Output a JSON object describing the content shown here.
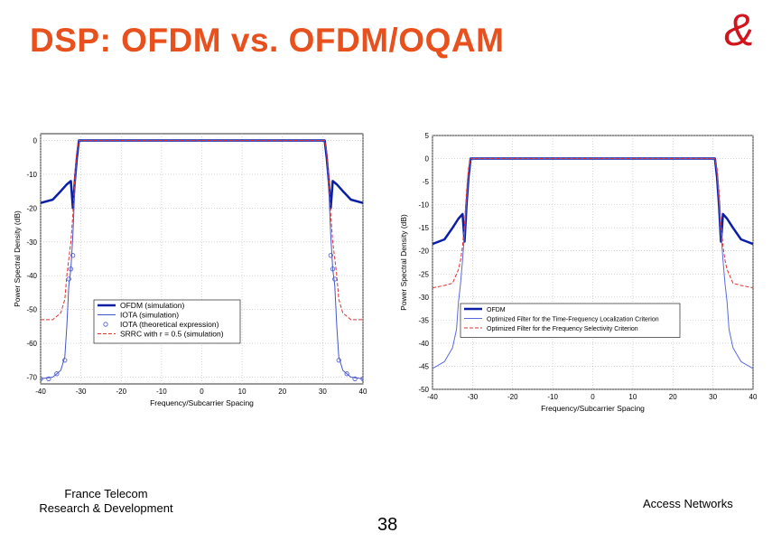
{
  "slide": {
    "title": "DSP: OFDM vs. OFDM/OQAM",
    "logo_glyph": "&",
    "footer_org_line1": "France Telecom",
    "footer_org_line2": "Research & Development",
    "footer_right": "Access Networks",
    "page_number": "38",
    "colors": {
      "title": "#e8501d",
      "logo": "#d2141e",
      "ofdm": "#0a1ea6",
      "opt_tf": "#5a6ae0",
      "srrc": "#e03030"
    }
  },
  "chart_data": [
    {
      "type": "line",
      "title": "",
      "xlabel": "Frequency/Subcarrier Spacing",
      "ylabel": "Power Spectral Density (dB)",
      "xlim": [
        -40,
        40
      ],
      "ylim": [
        -72,
        2
      ],
      "xticks": [
        -40,
        -30,
        -20,
        -10,
        0,
        10,
        20,
        30,
        40
      ],
      "yticks": [
        0,
        -10,
        -20,
        -30,
        -40,
        -50,
        -60,
        -70
      ],
      "grid": true,
      "legend_position": "lower-center",
      "series": [
        {
          "name": "OFDM (simulation)",
          "color": "#0a1ea6",
          "style": "solid",
          "width": 2.5,
          "x": [
            -40,
            -37,
            -35,
            -33.5,
            -32.5,
            -32,
            -31.5,
            -31,
            -30.5,
            30.5,
            31,
            31.5,
            32,
            32.5,
            33.5,
            35,
            37,
            40
          ],
          "y": [
            -18.5,
            -17.5,
            -15,
            -13,
            -12,
            -20,
            -12,
            -5,
            0,
            0,
            -5,
            -12,
            -20,
            -12,
            -13,
            -15,
            -17.5,
            -18.5
          ]
        },
        {
          "name": "IOTA (simulation)",
          "color": "#4455cc",
          "style": "solid",
          "width": 1,
          "x": [
            -40,
            -37,
            -35,
            -34,
            -33.5,
            -33,
            -32.5,
            -32,
            -31.5,
            -31,
            -30.5,
            30.5,
            31,
            31.5,
            32,
            32.5,
            33,
            33.5,
            34,
            35,
            37,
            40
          ],
          "y": [
            -70.5,
            -70,
            -68,
            -64,
            -55,
            -43,
            -38,
            -28,
            -14,
            -4,
            0,
            0,
            -4,
            -14,
            -28,
            -38,
            -43,
            -55,
            -64,
            -68,
            -70,
            -70.5
          ]
        },
        {
          "name": "IOTA (theoretical expression)",
          "color": "#4455cc",
          "style": "markers",
          "width": 1,
          "x": [
            -40,
            -38,
            -36,
            -34,
            -33,
            -32.5,
            -32,
            32,
            32.5,
            33,
            34,
            36,
            38,
            40
          ],
          "y": [
            -70.5,
            -70.5,
            -69,
            -65,
            -41,
            -38,
            -34,
            -34,
            -38,
            -41,
            -65,
            -69,
            -70.5,
            -70.5
          ]
        },
        {
          "name": "SRRC with r = 0.5 (simulation)",
          "color": "#e03030",
          "style": "dashed",
          "width": 1,
          "x": [
            -40,
            -37,
            -35,
            -34,
            -33.5,
            -33,
            -32.5,
            -32,
            -31.5,
            -31,
            -30.5,
            30.5,
            31,
            31.5,
            32,
            32.5,
            33,
            33.5,
            34,
            35,
            37,
            40
          ],
          "y": [
            -53,
            -53,
            -51,
            -47,
            -40,
            -35,
            -30,
            -22,
            -10,
            -3,
            0,
            0,
            -3,
            -10,
            -22,
            -30,
            -35,
            -40,
            -47,
            -51,
            -53,
            -53
          ]
        }
      ]
    },
    {
      "type": "line",
      "title": "",
      "xlabel": "Frequency/Subcarrier Spacing",
      "ylabel": "Power Spectral Density (dB)",
      "xlim": [
        -40,
        40
      ],
      "ylim": [
        -50,
        5
      ],
      "xticks": [
        -40,
        -30,
        -20,
        -10,
        0,
        10,
        20,
        30,
        40
      ],
      "yticks": [
        5,
        0,
        -5,
        -10,
        -15,
        -20,
        -25,
        -30,
        -35,
        -40,
        -45,
        -50
      ],
      "grid": true,
      "legend_position": "lower-center",
      "series": [
        {
          "name": "OFDM",
          "color": "#0a1ea6",
          "style": "solid",
          "width": 2.5,
          "x": [
            -40,
            -37,
            -35,
            -33.5,
            -32.5,
            -32,
            -31.5,
            -31,
            -30.5,
            30.5,
            31,
            31.5,
            32,
            32.5,
            33.5,
            35,
            37,
            40
          ],
          "y": [
            -18.5,
            -17.5,
            -15,
            -13,
            -12,
            -18,
            -10,
            -4,
            0,
            0,
            -4,
            -10,
            -18,
            -12,
            -13,
            -15,
            -17.5,
            -18.5
          ]
        },
        {
          "name": "Optimized Filter for the Time-Frequency Localization Criterion",
          "color": "#5a6ae0",
          "style": "solid",
          "width": 1,
          "x": [
            -40,
            -37,
            -35,
            -34,
            -33.5,
            -33,
            -32.5,
            -32,
            -31.5,
            -31,
            -30.5,
            30.5,
            31,
            31.5,
            32,
            32.5,
            33,
            33.5,
            34,
            35,
            37,
            40
          ],
          "y": [
            -45.5,
            -44,
            -41,
            -37,
            -31,
            -27,
            -22,
            -16,
            -9,
            -3,
            0,
            0,
            -3,
            -9,
            -16,
            -22,
            -27,
            -31,
            -37,
            -41,
            -44,
            -45.5
          ]
        },
        {
          "name": "Optimized Filter for the Frequency Selectivity Criterion",
          "color": "#e03030",
          "style": "dashed",
          "width": 1,
          "x": [
            -40,
            -37,
            -35,
            -34,
            -33.5,
            -33,
            -32.5,
            -32,
            -31.5,
            -31,
            -30.5,
            30.5,
            31,
            31.5,
            32,
            32.5,
            33,
            33.5,
            34,
            35,
            37,
            40
          ],
          "y": [
            -28,
            -27.5,
            -27,
            -25,
            -24,
            -22,
            -19,
            -14,
            -7,
            -2,
            0,
            0,
            -2,
            -7,
            -14,
            -19,
            -22,
            -24,
            -25,
            -27,
            -27.5,
            -28
          ]
        }
      ]
    }
  ]
}
